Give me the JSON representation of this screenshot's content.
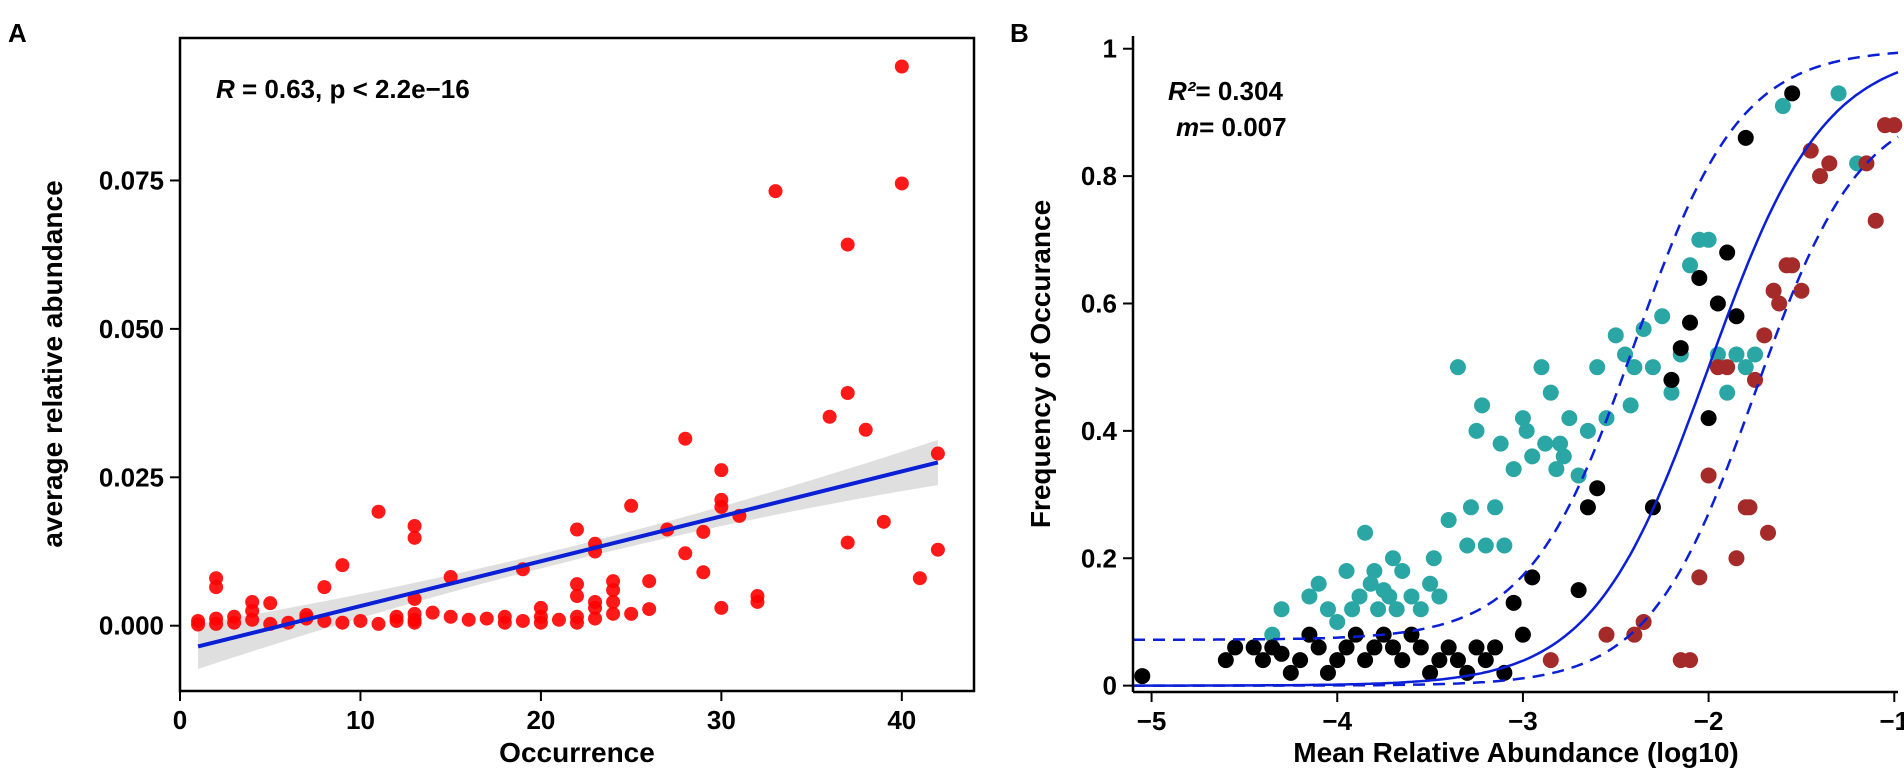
{
  "panels": {
    "a_letter": "A",
    "b_letter": "B"
  },
  "colors": {
    "red_points": "#ff0000",
    "fit_line": "#0a1fd6",
    "ci_band": "#c9c9c9",
    "teal": "#2aa7a4",
    "black": "#000000",
    "brown": "#a52a2a"
  },
  "chart_data": [
    {
      "type": "scatter",
      "panel": "A",
      "xlabel": "Occurrence",
      "ylabel": "average relative abundance",
      "xlim": [
        0,
        44
      ],
      "ylim": [
        -0.011,
        0.099
      ],
      "xticks": [
        0,
        10,
        20,
        30,
        40
      ],
      "xtick_labels": [
        "0",
        "10",
        "20",
        "30",
        "40"
      ],
      "yticks": [
        0.0,
        0.025,
        0.05,
        0.075
      ],
      "ytick_labels": [
        "0.000",
        "0.025",
        "0.050",
        "0.075"
      ],
      "annotation": {
        "r_symbol": "R",
        "text": " = 0.63, p < 2.2e−16"
      },
      "fit": {
        "x0": 1,
        "y0": -0.0035,
        "x1": 42,
        "y1": 0.0275,
        "ci_start": 0.003,
        "ci_end": 0.004
      },
      "points": [
        [
          1,
          0.0002
        ],
        [
          1,
          0.0008
        ],
        [
          2,
          0.0003
        ],
        [
          2,
          0.0012
        ],
        [
          2,
          0.0065
        ],
        [
          2,
          0.008
        ],
        [
          3,
          0.0005
        ],
        [
          3,
          0.0015
        ],
        [
          4,
          0.001
        ],
        [
          4,
          0.0025
        ],
        [
          4,
          0.004
        ],
        [
          5,
          0.0003
        ],
        [
          5,
          0.0038
        ],
        [
          6,
          0.0005
        ],
        [
          7,
          0.0012
        ],
        [
          7,
          0.0018
        ],
        [
          8,
          0.0008
        ],
        [
          8,
          0.0065
        ],
        [
          9,
          0.0005
        ],
        [
          9,
          0.0102
        ],
        [
          10,
          0.0008
        ],
        [
          11,
          0.0003
        ],
        [
          11,
          0.0192
        ],
        [
          12,
          0.0008
        ],
        [
          12,
          0.0015
        ],
        [
          13,
          0.0005
        ],
        [
          13,
          0.001
        ],
        [
          13,
          0.002
        ],
        [
          13,
          0.0045
        ],
        [
          13,
          0.0148
        ],
        [
          13,
          0.0168
        ],
        [
          14,
          0.0022
        ],
        [
          15,
          0.0082
        ],
        [
          15,
          0.0015
        ],
        [
          16,
          0.001
        ],
        [
          17,
          0.0012
        ],
        [
          18,
          0.0005
        ],
        [
          18,
          0.0015
        ],
        [
          19,
          0.0008
        ],
        [
          19,
          0.0095
        ],
        [
          20,
          0.0005
        ],
        [
          20,
          0.0015
        ],
        [
          20,
          0.003
        ],
        [
          21,
          0.001
        ],
        [
          22,
          0.0005
        ],
        [
          22,
          0.0015
        ],
        [
          22,
          0.005
        ],
        [
          22,
          0.007
        ],
        [
          22,
          0.0162
        ],
        [
          23,
          0.0012
        ],
        [
          23,
          0.003
        ],
        [
          23,
          0.004
        ],
        [
          23,
          0.0125
        ],
        [
          23,
          0.0138
        ],
        [
          24,
          0.002
        ],
        [
          24,
          0.004
        ],
        [
          24,
          0.006
        ],
        [
          24,
          0.0075
        ],
        [
          25,
          0.002
        ],
        [
          25,
          0.0202
        ],
        [
          26,
          0.0028
        ],
        [
          26,
          0.0075
        ],
        [
          27,
          0.0162
        ],
        [
          28,
          0.0122
        ],
        [
          28,
          0.0315
        ],
        [
          29,
          0.009
        ],
        [
          29,
          0.0158
        ],
        [
          30,
          0.003
        ],
        [
          30,
          0.02
        ],
        [
          30,
          0.0212
        ],
        [
          30,
          0.0262
        ],
        [
          31,
          0.0185
        ],
        [
          32,
          0.004
        ],
        [
          32,
          0.005
        ],
        [
          33,
          0.0732
        ],
        [
          36,
          0.0352
        ],
        [
          37,
          0.014
        ],
        [
          37,
          0.0392
        ],
        [
          37,
          0.0642
        ],
        [
          38,
          0.033
        ],
        [
          39,
          0.0175
        ],
        [
          40,
          0.0745
        ],
        [
          40,
          0.0942
        ],
        [
          41,
          0.008
        ],
        [
          42,
          0.0128
        ],
        [
          42,
          0.029
        ]
      ]
    },
    {
      "type": "scatter",
      "panel": "B",
      "xlabel": "Mean Relative Abundance (log10)",
      "ylabel": "Frequency of Occurance",
      "xlim": [
        -5.1,
        -0.98
      ],
      "ylim": [
        -0.01,
        1.02
      ],
      "xticks": [
        -5,
        -4,
        -3,
        -2,
        -1
      ],
      "xtick_labels": [
        "−5",
        "−4",
        "−3",
        "−2",
        "−1"
      ],
      "yticks": [
        0,
        0.2,
        0.4,
        0.6,
        0.8,
        1.0
      ],
      "ytick_labels": [
        "0",
        "0.2",
        "0.4",
        "0.6",
        "0.8",
        "1"
      ],
      "annotation": {
        "r2_symbol": "R²",
        "r2_value": "= 0.304",
        "m_symbol": "m",
        "m_value": "= 0.007"
      },
      "fit": {
        "center": -2.0,
        "slope": 3.2,
        "upper_base": 0.072,
        "upper_center": -2.4,
        "lower_top": 0.92,
        "lower_center": -1.75,
        "curve_slope": 3.5
      },
      "series": [
        {
          "name": "teal",
          "points": [
            [
              -4.35,
              0.08
            ],
            [
              -4.3,
              0.12
            ],
            [
              -4.15,
              0.14
            ],
            [
              -4.1,
              0.16
            ],
            [
              -4.05,
              0.12
            ],
            [
              -4.0,
              0.1
            ],
            [
              -3.95,
              0.18
            ],
            [
              -3.92,
              0.12
            ],
            [
              -3.88,
              0.14
            ],
            [
              -3.85,
              0.24
            ],
            [
              -3.82,
              0.16
            ],
            [
              -3.8,
              0.18
            ],
            [
              -3.78,
              0.12
            ],
            [
              -3.75,
              0.15
            ],
            [
              -3.72,
              0.14
            ],
            [
              -3.7,
              0.2
            ],
            [
              -3.68,
              0.12
            ],
            [
              -3.65,
              0.18
            ],
            [
              -3.6,
              0.14
            ],
            [
              -3.55,
              0.12
            ],
            [
              -3.5,
              0.16
            ],
            [
              -3.48,
              0.2
            ],
            [
              -3.45,
              0.14
            ],
            [
              -3.4,
              0.26
            ],
            [
              -3.35,
              0.5
            ],
            [
              -3.3,
              0.22
            ],
            [
              -3.28,
              0.28
            ],
            [
              -3.25,
              0.4
            ],
            [
              -3.22,
              0.44
            ],
            [
              -3.2,
              0.22
            ],
            [
              -3.15,
              0.28
            ],
            [
              -3.12,
              0.38
            ],
            [
              -3.1,
              0.22
            ],
            [
              -3.05,
              0.34
            ],
            [
              -3.0,
              0.42
            ],
            [
              -2.98,
              0.4
            ],
            [
              -2.95,
              0.36
            ],
            [
              -2.9,
              0.5
            ],
            [
              -2.88,
              0.38
            ],
            [
              -2.85,
              0.46
            ],
            [
              -2.82,
              0.34
            ],
            [
              -2.8,
              0.38
            ],
            [
              -2.78,
              0.36
            ],
            [
              -2.75,
              0.42
            ],
            [
              -2.7,
              0.33
            ],
            [
              -2.65,
              0.4
            ],
            [
              -2.6,
              0.5
            ],
            [
              -2.55,
              0.42
            ],
            [
              -2.5,
              0.55
            ],
            [
              -2.45,
              0.52
            ],
            [
              -2.42,
              0.44
            ],
            [
              -2.4,
              0.5
            ],
            [
              -2.35,
              0.56
            ],
            [
              -2.3,
              0.5
            ],
            [
              -2.25,
              0.58
            ],
            [
              -2.2,
              0.46
            ],
            [
              -2.15,
              0.52
            ],
            [
              -2.1,
              0.66
            ],
            [
              -2.05,
              0.7
            ],
            [
              -2.0,
              0.7
            ],
            [
              -1.95,
              0.52
            ],
            [
              -1.9,
              0.46
            ],
            [
              -1.85,
              0.52
            ],
            [
              -1.8,
              0.5
            ],
            [
              -1.75,
              0.52
            ],
            [
              -1.6,
              0.91
            ],
            [
              -1.3,
              0.93
            ],
            [
              -1.2,
              0.82
            ]
          ]
        },
        {
          "name": "black",
          "points": [
            [
              -5.05,
              0.015
            ],
            [
              -4.6,
              0.04
            ],
            [
              -4.55,
              0.06
            ],
            [
              -4.45,
              0.06
            ],
            [
              -4.4,
              0.04
            ],
            [
              -4.35,
              0.06
            ],
            [
              -4.3,
              0.05
            ],
            [
              -4.25,
              0.02
            ],
            [
              -4.2,
              0.04
            ],
            [
              -4.15,
              0.08
            ],
            [
              -4.1,
              0.06
            ],
            [
              -4.05,
              0.02
            ],
            [
              -4.0,
              0.04
            ],
            [
              -3.95,
              0.06
            ],
            [
              -3.9,
              0.08
            ],
            [
              -3.85,
              0.04
            ],
            [
              -3.8,
              0.06
            ],
            [
              -3.75,
              0.08
            ],
            [
              -3.7,
              0.06
            ],
            [
              -3.65,
              0.04
            ],
            [
              -3.6,
              0.08
            ],
            [
              -3.55,
              0.06
            ],
            [
              -3.5,
              0.02
            ],
            [
              -3.45,
              0.04
            ],
            [
              -3.4,
              0.06
            ],
            [
              -3.35,
              0.04
            ],
            [
              -3.3,
              0.02
            ],
            [
              -3.25,
              0.06
            ],
            [
              -3.2,
              0.04
            ],
            [
              -3.15,
              0.06
            ],
            [
              -3.1,
              0.02
            ],
            [
              -3.05,
              0.13
            ],
            [
              -3.0,
              0.08
            ],
            [
              -2.95,
              0.17
            ],
            [
              -2.7,
              0.15
            ],
            [
              -2.65,
              0.28
            ],
            [
              -2.6,
              0.31
            ],
            [
              -2.3,
              0.28
            ],
            [
              -2.2,
              0.48
            ],
            [
              -2.15,
              0.53
            ],
            [
              -2.1,
              0.57
            ],
            [
              -2.05,
              0.64
            ],
            [
              -2.0,
              0.42
            ],
            [
              -1.95,
              0.6
            ],
            [
              -1.9,
              0.68
            ],
            [
              -1.85,
              0.58
            ],
            [
              -1.8,
              0.86
            ],
            [
              -1.55,
              0.93
            ]
          ]
        },
        {
          "name": "brown",
          "points": [
            [
              -2.85,
              0.04
            ],
            [
              -2.55,
              0.08
            ],
            [
              -2.4,
              0.08
            ],
            [
              -2.35,
              0.1
            ],
            [
              -2.15,
              0.04
            ],
            [
              -2.1,
              0.04
            ],
            [
              -2.05,
              0.17
            ],
            [
              -2.0,
              0.33
            ],
            [
              -1.95,
              0.5
            ],
            [
              -1.9,
              0.5
            ],
            [
              -1.85,
              0.2
            ],
            [
              -1.8,
              0.28
            ],
            [
              -1.78,
              0.28
            ],
            [
              -1.75,
              0.48
            ],
            [
              -1.7,
              0.55
            ],
            [
              -1.68,
              0.24
            ],
            [
              -1.65,
              0.62
            ],
            [
              -1.62,
              0.6
            ],
            [
              -1.58,
              0.66
            ],
            [
              -1.55,
              0.66
            ],
            [
              -1.5,
              0.62
            ],
            [
              -1.45,
              0.84
            ],
            [
              -1.4,
              0.8
            ],
            [
              -1.35,
              0.82
            ],
            [
              -1.15,
              0.82
            ],
            [
              -1.1,
              0.73
            ],
            [
              -1.05,
              0.88
            ],
            [
              -1.0,
              0.88
            ]
          ]
        }
      ]
    }
  ]
}
